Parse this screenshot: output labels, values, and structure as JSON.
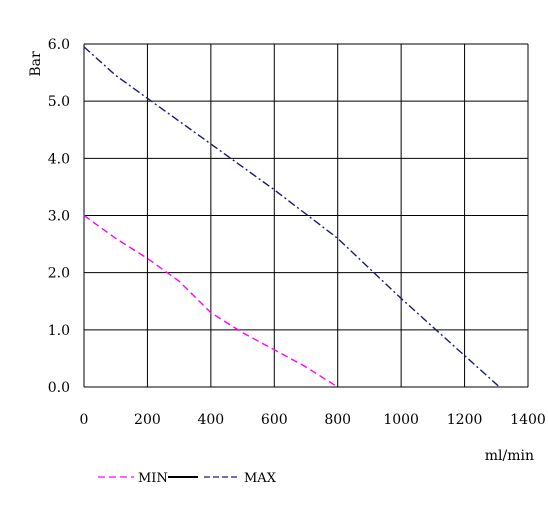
{
  "chart_data": {
    "type": "line",
    "title": "",
    "xlabel": "ml/min",
    "ylabel": "Bar",
    "xlim": [
      0,
      1400
    ],
    "ylim": [
      0,
      6
    ],
    "xticks": [
      0,
      200,
      400,
      600,
      800,
      1000,
      1200,
      1400
    ],
    "xtick_labels": [
      "0",
      "200",
      "400",
      "600",
      "800",
      "1000",
      "1200",
      "1400"
    ],
    "yticks": [
      0,
      1,
      2,
      3,
      4,
      5,
      6
    ],
    "ytick_labels": [
      "0.0",
      "1.0",
      "2.0",
      "3.0",
      "4.0",
      "5.0",
      "6.0"
    ],
    "grid": true,
    "legend_position": "bottom-left",
    "legend": [
      "MIN",
      "MAX"
    ],
    "series": [
      {
        "name": "MIN",
        "color": "#ff00ff",
        "style": "dashed",
        "x": [
          0,
          100,
          200,
          300,
          400,
          500,
          600,
          700,
          800
        ],
        "y": [
          3.0,
          2.6,
          2.25,
          1.85,
          1.3,
          0.95,
          0.65,
          0.35,
          0.0
        ]
      },
      {
        "name": "",
        "color": "#000000",
        "style": "solid",
        "x": [],
        "y": []
      },
      {
        "name": "MAX",
        "color": "#1a1a7a",
        "style": "dashdot",
        "x": [
          0,
          100,
          200,
          400,
          600,
          800,
          1000,
          1200,
          1310
        ],
        "y": [
          5.95,
          5.45,
          5.05,
          4.25,
          3.45,
          2.6,
          1.55,
          0.55,
          0.0
        ]
      }
    ]
  }
}
